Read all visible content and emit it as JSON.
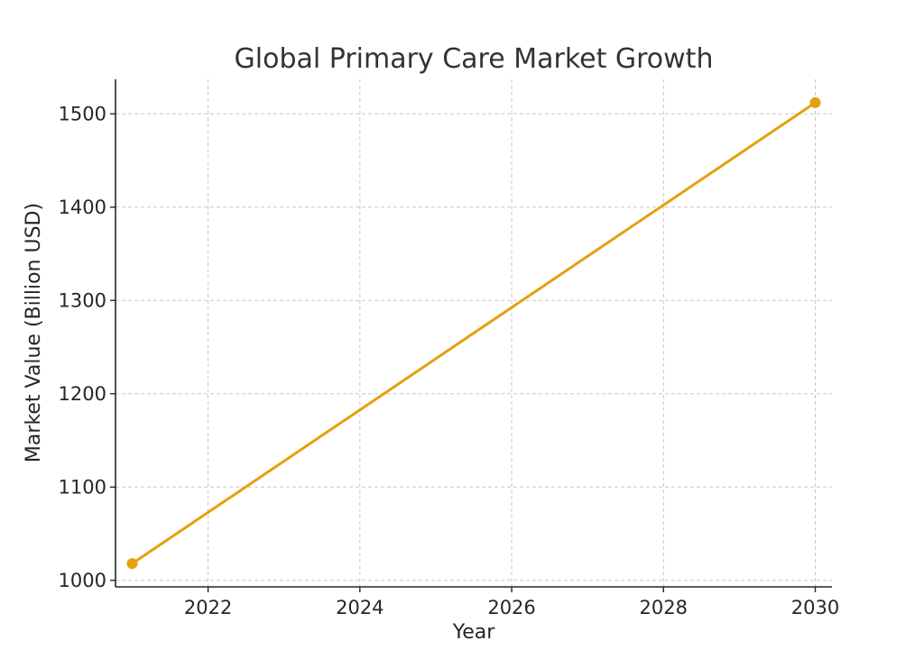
{
  "chart_data": {
    "type": "line",
    "title": "Global Primary Care Market Growth",
    "xlabel": "Year",
    "ylabel": "Market Value (Billion USD)",
    "xlim": [
      2020.78,
      2030.22
    ],
    "ylim": [
      993,
      1537
    ],
    "x_ticks": [
      2022,
      2024,
      2026,
      2028,
      2030
    ],
    "y_ticks": [
      1000,
      1100,
      1200,
      1300,
      1400,
      1500
    ],
    "grid": true,
    "series": [
      {
        "color": "#e5a00d",
        "marker": "circle",
        "points": [
          {
            "x": 2021,
            "y": 1018
          },
          {
            "x": 2030,
            "y": 1512
          }
        ]
      }
    ]
  }
}
